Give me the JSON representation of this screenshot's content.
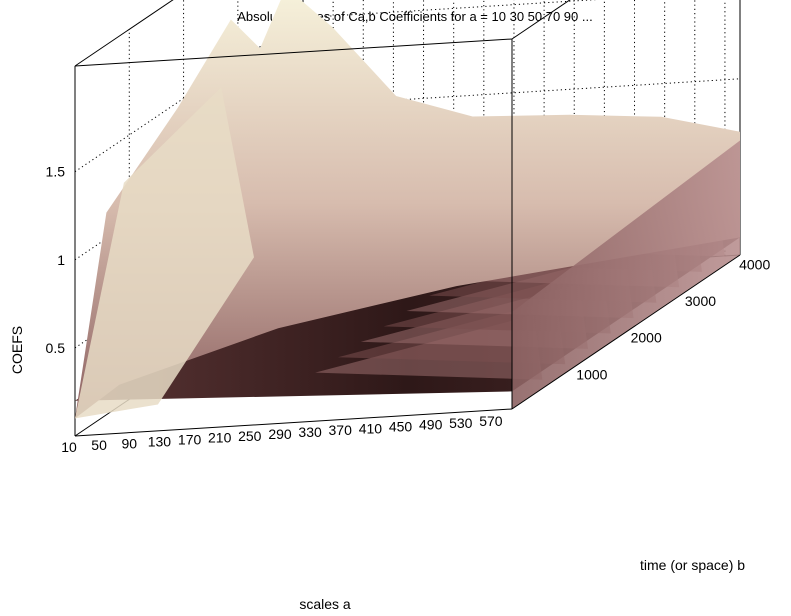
{
  "chart_data": {
    "type": "surface3d",
    "title": "Absolute Values of Ca,b Coefficients for a =  10 30 50 70 90 ...",
    "xlabel": "scales a",
    "ylabel": "time (or space) b",
    "zlabel": "COEFS",
    "x_ticks": [
      "10",
      "50",
      "90",
      "130",
      "170",
      "210",
      "250",
      "290",
      "330",
      "370",
      "410",
      "450",
      "490",
      "530",
      "570"
    ],
    "y_ticks": [
      "1000",
      "2000",
      "3000",
      "4000"
    ],
    "z_ticks": [
      "0.5",
      "1",
      "1.5"
    ],
    "x_range": [
      10,
      590
    ],
    "y_range": [
      0,
      4200
    ],
    "z_range": [
      0,
      2.1
    ],
    "grid": true,
    "colormap": "pink",
    "colors": {
      "dark": "#3a1e1e",
      "mid": "#b88a8a",
      "light": "#f2f0d4"
    }
  }
}
